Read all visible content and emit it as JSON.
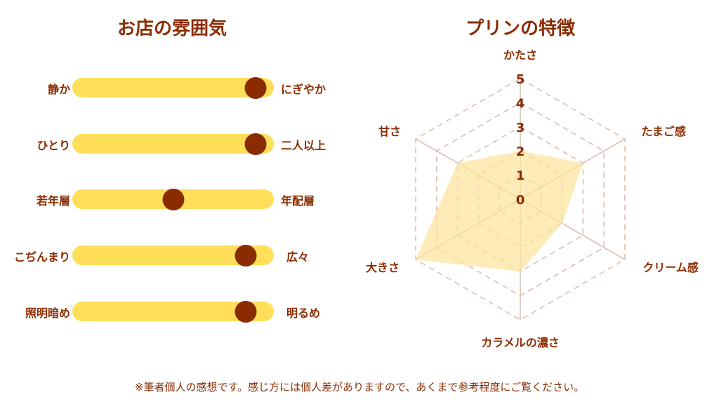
{
  "left": {
    "title": "お店の雰囲気",
    "scales": [
      {
        "left": "静か",
        "right": "にぎやか",
        "position": 0.91
      },
      {
        "left": "ひとり",
        "right": "二人以上",
        "position": 0.91
      },
      {
        "left": "若年層",
        "right": "年配層",
        "position": 0.5
      },
      {
        "left": "こぢんまり",
        "right": "広々",
        "position": 0.86
      },
      {
        "left": "照明暗め",
        "right": "明るめ",
        "position": 0.86
      }
    ]
  },
  "chart_data": {
    "type": "radar",
    "title": "プリンの特徴",
    "axes": [
      "かたさ",
      "たまご感",
      "クリーム感",
      "カラメルの濃さ",
      "大きさ",
      "甘さ"
    ],
    "values": [
      2,
      3,
      2,
      3,
      5,
      3
    ],
    "range": [
      0,
      5
    ],
    "ticks": [
      "0",
      "1",
      "2",
      "3",
      "4",
      "5"
    ]
  },
  "colors": {
    "brown": "#8B2C00",
    "yellow": "#FFDE5A",
    "fill": "#FCE29A",
    "grid": "#D9BBAE"
  },
  "footnote": "※筆者個人の感想です。感じ方には個人差がありますので、あくまで参考程度にご覧ください。"
}
